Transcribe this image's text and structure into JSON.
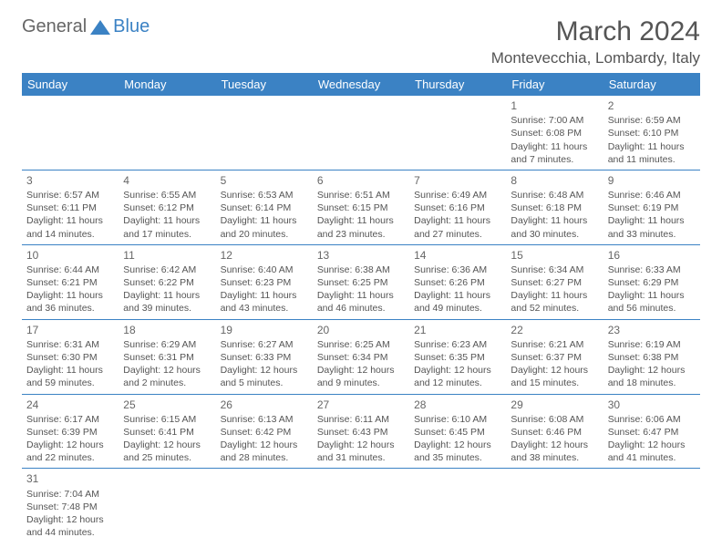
{
  "logo": {
    "part1": "General",
    "part2": "Blue"
  },
  "title": "March 2024",
  "location": "Montevecchia, Lombardy, Italy",
  "headers": [
    "Sunday",
    "Monday",
    "Tuesday",
    "Wednesday",
    "Thursday",
    "Friday",
    "Saturday"
  ],
  "colors": {
    "accent": "#3b82c4",
    "text": "#555",
    "bg": "#ffffff"
  },
  "weeks": [
    [
      null,
      null,
      null,
      null,
      null,
      {
        "d": "1",
        "sr": "7:00 AM",
        "ss": "6:08 PM",
        "dl": "11 hours and 7 minutes."
      },
      {
        "d": "2",
        "sr": "6:59 AM",
        "ss": "6:10 PM",
        "dl": "11 hours and 11 minutes."
      }
    ],
    [
      {
        "d": "3",
        "sr": "6:57 AM",
        "ss": "6:11 PM",
        "dl": "11 hours and 14 minutes."
      },
      {
        "d": "4",
        "sr": "6:55 AM",
        "ss": "6:12 PM",
        "dl": "11 hours and 17 minutes."
      },
      {
        "d": "5",
        "sr": "6:53 AM",
        "ss": "6:14 PM",
        "dl": "11 hours and 20 minutes."
      },
      {
        "d": "6",
        "sr": "6:51 AM",
        "ss": "6:15 PM",
        "dl": "11 hours and 23 minutes."
      },
      {
        "d": "7",
        "sr": "6:49 AM",
        "ss": "6:16 PM",
        "dl": "11 hours and 27 minutes."
      },
      {
        "d": "8",
        "sr": "6:48 AM",
        "ss": "6:18 PM",
        "dl": "11 hours and 30 minutes."
      },
      {
        "d": "9",
        "sr": "6:46 AM",
        "ss": "6:19 PM",
        "dl": "11 hours and 33 minutes."
      }
    ],
    [
      {
        "d": "10",
        "sr": "6:44 AM",
        "ss": "6:21 PM",
        "dl": "11 hours and 36 minutes."
      },
      {
        "d": "11",
        "sr": "6:42 AM",
        "ss": "6:22 PM",
        "dl": "11 hours and 39 minutes."
      },
      {
        "d": "12",
        "sr": "6:40 AM",
        "ss": "6:23 PM",
        "dl": "11 hours and 43 minutes."
      },
      {
        "d": "13",
        "sr": "6:38 AM",
        "ss": "6:25 PM",
        "dl": "11 hours and 46 minutes."
      },
      {
        "d": "14",
        "sr": "6:36 AM",
        "ss": "6:26 PM",
        "dl": "11 hours and 49 minutes."
      },
      {
        "d": "15",
        "sr": "6:34 AM",
        "ss": "6:27 PM",
        "dl": "11 hours and 52 minutes."
      },
      {
        "d": "16",
        "sr": "6:33 AM",
        "ss": "6:29 PM",
        "dl": "11 hours and 56 minutes."
      }
    ],
    [
      {
        "d": "17",
        "sr": "6:31 AM",
        "ss": "6:30 PM",
        "dl": "11 hours and 59 minutes."
      },
      {
        "d": "18",
        "sr": "6:29 AM",
        "ss": "6:31 PM",
        "dl": "12 hours and 2 minutes."
      },
      {
        "d": "19",
        "sr": "6:27 AM",
        "ss": "6:33 PM",
        "dl": "12 hours and 5 minutes."
      },
      {
        "d": "20",
        "sr": "6:25 AM",
        "ss": "6:34 PM",
        "dl": "12 hours and 9 minutes."
      },
      {
        "d": "21",
        "sr": "6:23 AM",
        "ss": "6:35 PM",
        "dl": "12 hours and 12 minutes."
      },
      {
        "d": "22",
        "sr": "6:21 AM",
        "ss": "6:37 PM",
        "dl": "12 hours and 15 minutes."
      },
      {
        "d": "23",
        "sr": "6:19 AM",
        "ss": "6:38 PM",
        "dl": "12 hours and 18 minutes."
      }
    ],
    [
      {
        "d": "24",
        "sr": "6:17 AM",
        "ss": "6:39 PM",
        "dl": "12 hours and 22 minutes."
      },
      {
        "d": "25",
        "sr": "6:15 AM",
        "ss": "6:41 PM",
        "dl": "12 hours and 25 minutes."
      },
      {
        "d": "26",
        "sr": "6:13 AM",
        "ss": "6:42 PM",
        "dl": "12 hours and 28 minutes."
      },
      {
        "d": "27",
        "sr": "6:11 AM",
        "ss": "6:43 PM",
        "dl": "12 hours and 31 minutes."
      },
      {
        "d": "28",
        "sr": "6:10 AM",
        "ss": "6:45 PM",
        "dl": "12 hours and 35 minutes."
      },
      {
        "d": "29",
        "sr": "6:08 AM",
        "ss": "6:46 PM",
        "dl": "12 hours and 38 minutes."
      },
      {
        "d": "30",
        "sr": "6:06 AM",
        "ss": "6:47 PM",
        "dl": "12 hours and 41 minutes."
      }
    ],
    [
      {
        "d": "31",
        "sr": "7:04 AM",
        "ss": "7:48 PM",
        "dl": "12 hours and 44 minutes."
      },
      null,
      null,
      null,
      null,
      null,
      null
    ]
  ],
  "labels": {
    "sunrise": "Sunrise:",
    "sunset": "Sunset:",
    "daylight": "Daylight:"
  }
}
